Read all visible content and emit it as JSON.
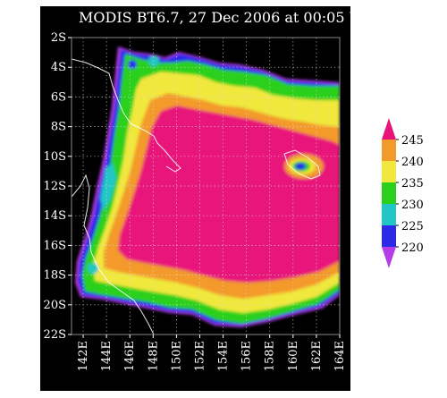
{
  "title": "MODIS BT6.7, 27 Dec 2006 at 00:05 UTC",
  "chart_data": {
    "type": "heatmap",
    "title": "MODIS BT6.7, 27 Dec 2006 at 00:05 UTC",
    "xlabel": "",
    "ylabel": "",
    "x_ticks": [
      "142E",
      "144E",
      "146E",
      "148E",
      "150E",
      "152E",
      "154E",
      "156E",
      "158E",
      "160E",
      "162E",
      "164E"
    ],
    "y_ticks": [
      "2S",
      "4S",
      "6S",
      "8S",
      "10S",
      "12S",
      "14S",
      "16S",
      "18S",
      "20S",
      "22S"
    ],
    "xlim": [
      141,
      164
    ],
    "ylim": [
      -22,
      -2
    ],
    "grid": true,
    "colorbar": {
      "ticks": [
        "245",
        "240",
        "235",
        "230",
        "225",
        "220"
      ],
      "levels": [
        {
          "min": 245,
          "color": "#e8137a"
        },
        {
          "min": 240,
          "color": "#f39a2c"
        },
        {
          "min": 235,
          "color": "#f0e83c"
        },
        {
          "min": 230,
          "color": "#2ad01c"
        },
        {
          "min": 225,
          "color": "#22c6c6"
        },
        {
          "min": 220,
          "color": "#2a2ae8"
        },
        {
          "min": 0,
          "color": "#b63ce6"
        }
      ]
    }
  }
}
